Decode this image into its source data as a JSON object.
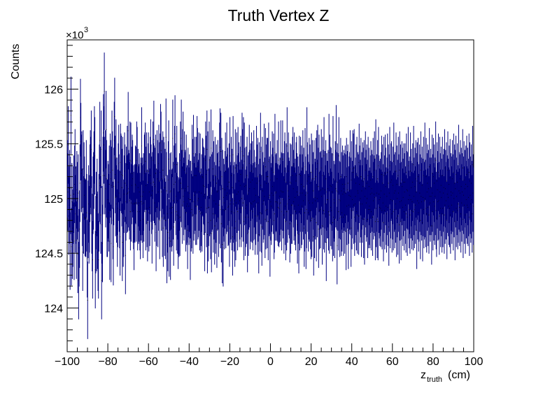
{
  "chart_data": {
    "type": "scatter",
    "title": "Truth Vertex Z",
    "xlabel_main": "z",
    "xlabel_sub": "truth",
    "xlabel_unit": "(cm)",
    "ylabel": "Counts",
    "y_multiplier_base": "×10",
    "y_multiplier_exp": "3",
    "xlim": [
      -100,
      100
    ],
    "ylim": [
      123.6,
      126.45
    ],
    "x_ticks": [
      -100,
      -80,
      -60,
      -40,
      -20,
      0,
      20,
      40,
      60,
      80,
      100
    ],
    "x_tick_labels": [
      "−100",
      "−80",
      "−60",
      "−40",
      "−20",
      "0",
      "20",
      "40",
      "60",
      "80",
      "100"
    ],
    "y_ticks": [
      124,
      124.5,
      125,
      125.5,
      126
    ],
    "y_tick_labels": [
      "124",
      "124.5",
      "125",
      "125.5",
      "126"
    ],
    "grid": false,
    "legend": "none",
    "color": "#000080",
    "bin_width": 1,
    "error": 0.354,
    "values": [
      125.18,
      125.06,
      125.49,
      124.84,
      124.94,
      125.09,
      124.52,
      125.03,
      125.76,
      124.56,
      124.97,
      124.62,
      124.73,
      124.94,
      125.04,
      124.61,
      125.13,
      125.28,
      124.86,
      124.94,
      124.62,
      125.08,
      124.98,
      124.49,
      125.05,
      124.25,
      124.55,
      124.72,
      125.14,
      125.74,
      125.52,
      125.23,
      125.26,
      124.92,
      124.51,
      125.27,
      124.85,
      125.16,
      125.03,
      124.83,
      124.82,
      124.82,
      125.18,
      124.87,
      124.45,
      124.07,
      124.81,
      124.95,
      124.76,
      124.86,
      125.14,
      125.27,
      125.21,
      125.45,
      124.85,
      124.69,
      124.44,
      125.03,
      125.07,
      125.26,
      125.49,
      125.39,
      124.35,
      124.67,
      124.89,
      124.69,
      125.01,
      124.71,
      124.51,
      124.44,
      124.87,
      125.14,
      125.53,
      125.12,
      124.85,
      125.45,
      124.25,
      124.76,
      124.59,
      125.21,
      125.6,
      125.49,
      125.98,
      125.21,
      125.27,
      125.09,
      125.63,
      125.18,
      124.82,
      124.82,
      124.99,
      124.96,
      124.87,
      125.13,
      124.61,
      125.24,
      125.18,
      124.59,
      125.12,
      125.45,
      125.26,
      124.8,
      124.56,
      125.11,
      125.53,
      125.75,
      125.22,
      125.01,
      125.37,
      124.95,
      125.02,
      124.73,
      124.91,
      125.15,
      125.32,
      125.05,
      124.9,
      124.65,
      125.33,
      125.24,
      125.22,
      125.1,
      124.6,
      125.21,
      124.73,
      124.82,
      125.04,
      125.25,
      125.14,
      124.48,
      124.97,
      125.12,
      125.04,
      125.31,
      125.05,
      125.62,
      125.09,
      125.06,
      124.98,
      125.35,
      124.88,
      125.34,
      124.96,
      125.12,
      125.23,
      125.18,
      124.95,
      124.89,
      124.7,
      124.96,
      124.95,
      125.13,
      125.12,
      124.96,
      125.35,
      125.3,
      124.88,
      125.1,
      124.94,
      124.96,
      125.06,
      124.88,
      124.8,
      125.02,
      124.97,
      125.48,
      124.95,
      125.02,
      124.81,
      125.06,
      124.96,
      125.23,
      125.25,
      125.34,
      124.88,
      125.12,
      125.25,
      124.91,
      124.78,
      125.15,
      125.25,
      124.87,
      125.06,
      124.92,
      125.21,
      125.37,
      125.14,
      125.03,
      124.76,
      125.07,
      125.35,
      125.15,
      125.54,
      125.13,
      124.96,
      125.11,
      125.23,
      124.69,
      124.92,
      125.27,
      125.18,
      124.91,
      125.06,
      125.32,
      125.16,
      124.8,
      125.24,
      125.51,
      125.44,
      125.06,
      125.18,
      124.82,
      125.26,
      124.73,
      125.21,
      125.16,
      124.83,
      125.1,
      124.8,
      125.56,
      125.07,
      124.58,
      124.86,
      124.69,
      125.17,
      125.36,
      124.64,
      124.91,
      125.06,
      124.61,
      125.07,
      124.91,
      124.87,
      124.92,
      125.55,
      124.98,
      124.74,
      125.13,
      125.31,
      125.59,
      125.15,
      125.02,
      124.88,
      125.31,
      124.85,
      124.98,
      124.71,
      124.84,
      124.82,
      125.06,
      124.83,
      125.35,
      125.14,
      125.55,
      125.09,
      124.94,
      125.28,
      125.44,
      125.02,
      124.97,
      125.26,
      125.07,
      125.09,
      124.87,
      125.23,
      124.93,
      124.95,
      124.71,
      125.11,
      125.0,
      124.93,
      125.05,
      124.99,
      124.61,
      124.99,
      124.87,
      124.9,
      125.32,
      125.19,
      124.85,
      125.41,
      124.97,
      125.03,
      125.21,
      125.06,
      124.93,
      125.21,
      124.93,
      125.4,
      125.29,
      124.98,
      125.0,
      125.25,
      125.06,
      124.88,
      125.24,
      124.86,
      124.92,
      125.05,
      124.87,
      125.2,
      125.19,
      125.12,
      125.02,
      125.11,
      124.69,
      125.04,
      125.35,
      125.22,
      124.91,
      125.45,
      124.67,
      125.26,
      124.78,
      124.92,
      125.35,
      125.01,
      125.03,
      124.8,
      125.46,
      124.68,
      125.05,
      125.07,
      125.27,
      124.86,
      125.17,
      124.98,
      124.75,
      125.21,
      124.85,
      124.95,
      125.14,
      124.72,
      125.06,
      125.18,
      125.07,
      124.82,
      124.94,
      125.34,
      125.47,
      124.9,
      125.43,
      124.77,
      125.2,
      124.58,
      125.09,
      124.55,
      125.01,
      124.96,
      124.89,
      125.08,
      125.25,
      124.9,
      125.03,
      125.34,
      125.05,
      125.11,
      124.92,
      124.93,
      125.15,
      124.73,
      125.39,
      124.95,
      124.98,
      125.21,
      124.88,
      125.1,
      124.65,
      125.4,
      124.95,
      124.87,
      124.98,
      124.73,
      125.28,
      124.79,
      124.96,
      125.25,
      125.04,
      124.88,
      125.3,
      125.06,
      125.16,
      124.91,
      124.98,
      125.12,
      125.22,
      124.91,
      125.0,
      125.43,
      125.28,
      124.96,
      125.39,
      124.79,
      125.34,
      125.11,
      124.83,
      124.91,
      125.12,
      124.94,
      125.21,
      124.68,
      125.04,
      124.83,
      125.07,
      125.32,
      125.09,
      124.89,
      125.15,
      124.96,
      125.25,
      124.95,
      125.17,
      124.88,
      124.97,
      125.27,
      125.09,
      124.98,
      124.84,
      124.93,
      125.03,
      125.31,
      125.14,
      124.84,
      125.2,
      124.96,
      124.67,
      125.16,
      125.01,
      124.87,
      125.43,
      125.12,
      124.86,
      124.74,
      125.21,
      125.07,
      124.95,
      124.98,
      125.33,
      125.02,
      124.81,
      125.29,
      124.89,
      125.14,
      125.2,
      124.9,
      125.2,
      124.79,
      125.34,
      125.01,
      125.03,
      124.64,
      125.17,
      124.97,
      124.93,
      125.05,
      125.26,
      125.11,
      125.03,
      125.24,
      124.8,
      124.86,
      125.42,
      124.97,
      125.05,
      125.06,
      124.97,
      125.18,
      124.96,
      124.92,
      125.35,
      124.91,
      124.95,
      125.02,
      124.96,
      125.36,
      125.07,
      124.88,
      125.06,
      125.36,
      124.99,
      125.06,
      124.85,
      125.17,
      125.25,
      124.93,
      124.79,
      125.15,
      124.88,
      125.48,
      124.95,
      125.07,
      125.25,
      125.02,
      124.99,
      124.77,
      125.15,
      124.85,
      125.14,
      124.94,
      124.94,
      125.21,
      125.3,
      125.09,
      124.97,
      125.25,
      124.93,
      125.01,
      124.88,
      125.16,
      125.21,
      125.06,
      124.76,
      125.03,
      124.94,
      124.67,
      125.22,
      124.88,
      125.05,
      125.21,
      124.9,
      125.13,
      124.93,
      125.05,
      125.27,
      124.98,
      125.11,
      124.73,
      124.87,
      125.29,
      125.03,
      124.71,
      124.9,
      125.48,
      125.16,
      125.05,
      124.87,
      124.98,
      125.2,
      124.96,
      125.14,
      124.89,
      124.8,
      125.24,
      124.82,
      125.18,
      124.96,
      125.07,
      124.65,
      125.18,
      124.81,
      125.01,
      124.98,
      125.2,
      124.78,
      125.27,
      125.0,
      125.32,
      125.11,
      124.72,
      125.23,
      124.89,
      125.07,
      124.9,
      125.08,
      125.28,
      125.02,
      124.75,
      125.21,
      125.09,
      124.89,
      125.39,
      124.86,
      125.08,
      124.95,
      125.18,
      124.6,
      125.06,
      124.99,
      124.99,
      125.09,
      124.88,
      125.42,
      124.85,
      125.23,
      125.12,
      124.92,
      125.11,
      124.89,
      125.06,
      124.78,
      125.4,
      124.83,
      124.99,
      124.96,
      124.81,
      125.17,
      125.09,
      125.5,
      125.07,
      124.57,
      125.15,
      125.06,
      124.88,
      125.39,
      124.99,
      124.82,
      124.98,
      125.2,
      124.83,
      125.07,
      124.87,
      125.13,
      125.04,
      124.83,
      125.09,
      125.06,
      124.85,
      125.13,
      125.05,
      124.7,
      125.2,
      124.93,
      125.08,
      125.14,
      124.71,
      124.94,
      125.03,
      125.07,
      125.27,
      125.02,
      124.73,
      125.17,
      124.89,
      124.99,
      125.27,
      125.24,
      124.94,
      125.28,
      124.83,
      124.95,
      125.02,
      125.14,
      124.88,
      125.21,
      124.85,
      125.07,
      125.05,
      124.84,
      125.33,
      125.13,
      124.95,
      125.0,
      125.2,
      124.82,
      125.07,
      124.95,
      125.16,
      125.11,
      124.81,
      125.18,
      124.75,
      125.02,
      125.26,
      125.09,
      124.96,
      125.14,
      125.0,
      124.81,
      125.21,
      124.9,
      125.11,
      124.93,
      124.9,
      125.04,
      125.17,
      124.88,
      125.09,
      125.05,
      124.83,
      125.2,
      124.98,
      125.04,
      125.26,
      125.01,
      124.79,
      125.37,
      124.91,
      125.05,
      124.81,
      125.18,
      124.79,
      125.3,
      125.04,
      124.99,
      124.92,
      125.01,
      124.91,
      125.07,
      125.22,
      124.89,
      125.14,
      124.96,
      124.78,
      125.21,
      125.04,
      124.89,
      125.23,
      125.11,
      124.93,
      124.86,
      125.02,
      125.24,
      124.92,
      125.14,
      124.74,
      125.05,
      125.3,
      124.9,
      124.99,
      125.15,
      125.17,
      124.86,
      124.98,
      125.12,
      124.88,
      125.34,
      125.05,
      124.9,
      125.07,
      124.95,
      125.25,
      124.82,
      125.13,
      125.0,
      124.84,
      125.21,
      125.05,
      124.76,
      125.26,
      124.97,
      125.14,
      124.79,
      124.98,
      125.17,
      125.11,
      124.92,
      125.01,
      125.15,
      124.88,
      125.06,
      125.15,
      124.94,
      124.86,
      125.24,
      125.08,
      124.83,
      125.07,
      125.3,
      124.99,
      124.9,
      125.03,
      124.85,
      125.25,
      124.99,
      125.1,
      124.89,
      124.97,
      125.15,
      124.88,
      125.31,
      125.02,
      124.9,
      125.11,
      124.94,
      125.18,
      125.06,
      124.71,
      125.16,
      124.98,
      125.2,
      124.87,
      124.96,
      125.14,
      125.05,
      124.8,
      125.26,
      125.02,
      124.97,
      125.12,
      124.78,
      125.01,
      125.21,
      124.9,
      124.98,
      125.34,
      125.0,
      124.91,
      125.2,
      124.86,
      125.06,
      125.14,
      124.92,
      125.09,
      124.85,
      125.29,
      125.02,
      124.96,
      125.1,
      125.02,
      124.75,
      125.23,
      125.05,
      124.88,
      125.2,
      124.97,
      125.14,
      124.93,
      125.02,
      125.35,
      124.89,
      124.82,
      125.16,
      125.08,
      124.97,
      125.24,
      124.98,
      124.84,
      125.21,
      125.06,
      124.91,
      125.12,
      125.01,
      124.86,
      125.21,
      124.91,
      125.05,
      125.1,
      124.85,
      125.28,
      124.94,
      125.09,
      124.98,
      125.16,
      124.8,
      125.04,
      125.26,
      125.01,
      124.93,
      125.13,
      124.91,
      125.19,
      124.85,
      125.06,
      125.03,
      124.94,
      125.18,
      125.05,
      124.88,
      125.24,
      125.0,
      125.14,
      124.79,
      125.09,
      125.22,
      124.91,
      125.02,
      125.15,
      124.89,
      124.95,
      125.32,
      125.07,
      124.92,
      125.05,
      125.18,
      124.86,
      125.11,
      124.96,
      125.06,
      125.28,
      124.81,
      125.03,
      125.17,
      124.94,
      125.09,
      124.85,
      125.13,
      124.99,
      125.22,
      124.94,
      125.11,
      124.92,
      125.01,
      125.24,
      124.83,
      125.16,
      125.03,
      124.95,
      125.14,
      124.99,
      124.86,
      125.31,
      125.05,
      124.93
    ]
  }
}
